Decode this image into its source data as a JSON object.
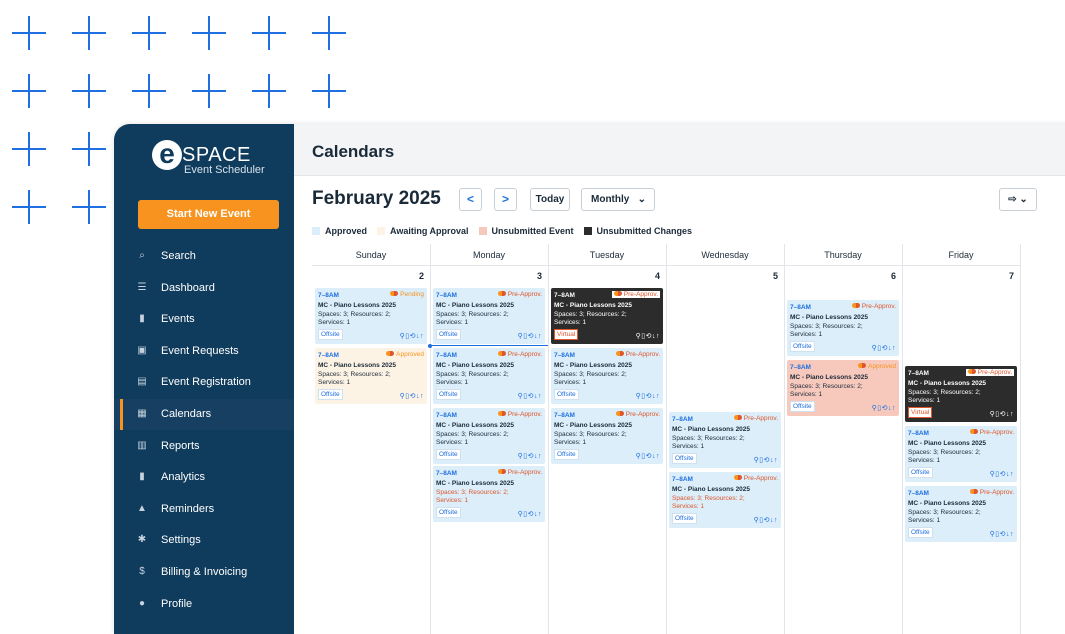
{
  "brand": {
    "logo_letter": "e",
    "logo_word": "SPACE",
    "logo_sub": "Event Scheduler"
  },
  "sidebar": {
    "start_button": "Start New Event",
    "items": [
      {
        "label": "Search",
        "icon": "search-icon",
        "glyph": "⌕"
      },
      {
        "label": "Dashboard",
        "icon": "dashboard-icon",
        "glyph": "☰"
      },
      {
        "label": "Events",
        "icon": "bookmark-icon",
        "glyph": "▮"
      },
      {
        "label": "Event Requests",
        "icon": "calendar-check-icon",
        "glyph": "▣"
      },
      {
        "label": "Event Registration",
        "icon": "registration-icon",
        "glyph": "▤"
      },
      {
        "label": "Calendars",
        "icon": "calendar-icon",
        "glyph": "▦"
      },
      {
        "label": "Reports",
        "icon": "reports-icon",
        "glyph": "▥"
      },
      {
        "label": "Analytics",
        "icon": "analytics-icon",
        "glyph": "▮"
      },
      {
        "label": "Reminders",
        "icon": "bell-icon",
        "glyph": "▲"
      },
      {
        "label": "Settings",
        "icon": "gear-icon",
        "glyph": "✱"
      },
      {
        "label": "Billing & Invoicing",
        "icon": "dollar-icon",
        "glyph": "$"
      },
      {
        "label": "Profile",
        "icon": "user-icon",
        "glyph": "●"
      }
    ]
  },
  "header": {
    "title": "Calendars"
  },
  "toolbar": {
    "month": "February 2025",
    "prev": "<",
    "next": ">",
    "today": "Today",
    "view": "Monthly",
    "chevron": "⌄"
  },
  "legend": [
    {
      "label": "Approved",
      "color": "#dbeefa"
    },
    {
      "label": "Awaiting Approval",
      "color": "#fdf3e4"
    },
    {
      "label": "Unsubmitted Event",
      "color": "#f7c9bd"
    },
    {
      "label": "Unsubmitted Changes",
      "color": "#2c2c2c"
    }
  ],
  "days": [
    "Sunday",
    "Monday",
    "Tuesday",
    "Wednesday",
    "Thursday",
    "Friday"
  ],
  "dates": [
    "2",
    "3",
    "4",
    "5",
    "6",
    "7"
  ],
  "event_template": {
    "time": "7–8AM",
    "name": "MC - Piano Lessons 2025",
    "detail": "Spaces: 3; Resources: 2; Services: 1",
    "actions": "⚲▯⟲↓↑"
  },
  "events": [
    {
      "col": 0,
      "y": 44,
      "kind": "",
      "status": "Pending",
      "status_class": "pending",
      "loc": "Offsite",
      "warn": false
    },
    {
      "col": 0,
      "y": 104,
      "kind": "approved",
      "status": "Approved",
      "status_class": "approved",
      "loc": "Offsite",
      "warn": false
    },
    {
      "col": 1,
      "y": 44,
      "kind": "",
      "status": "Pre-Approv.",
      "status_class": "",
      "loc": "Offsite",
      "warn": false
    },
    {
      "col": 1,
      "y": 104,
      "kind": "",
      "status": "Pre-Approv.",
      "status_class": "",
      "loc": "Offsite",
      "warn": false
    },
    {
      "col": 1,
      "y": 164,
      "kind": "",
      "status": "Pre-Approv.",
      "status_class": "",
      "loc": "Offsite",
      "warn": false
    },
    {
      "col": 1,
      "y": 222,
      "kind": "",
      "status": "Pre-Approv.",
      "status_class": "",
      "loc": "Offsite",
      "warn": true
    },
    {
      "col": 2,
      "y": 44,
      "kind": "dark",
      "status": "Pre-Approv.",
      "status_class": "",
      "loc": "Virtual",
      "warn": false
    },
    {
      "col": 2,
      "y": 104,
      "kind": "",
      "status": "Pre-Approv.",
      "status_class": "",
      "loc": "Offsite",
      "warn": false
    },
    {
      "col": 2,
      "y": 164,
      "kind": "",
      "status": "Pre-Approv.",
      "status_class": "",
      "loc": "Offsite",
      "warn": false
    },
    {
      "col": 3,
      "y": 168,
      "kind": "",
      "status": "Pre-Approv.",
      "status_class": "",
      "loc": "Offsite",
      "warn": false
    },
    {
      "col": 3,
      "y": 228,
      "kind": "",
      "status": "Pre-Approv.",
      "status_class": "",
      "loc": "Offsite",
      "warn": true
    },
    {
      "col": 4,
      "y": 56,
      "kind": "",
      "status": "Pre-Approv.",
      "status_class": "",
      "loc": "Offsite",
      "warn": false
    },
    {
      "col": 4,
      "y": 116,
      "kind": "unsub",
      "status": "Approved",
      "status_class": "approved",
      "loc": "Offsite",
      "warn": false
    },
    {
      "col": 5,
      "y": 122,
      "kind": "dark",
      "status": "Pre-Approv.",
      "status_class": "",
      "loc": "Virtual",
      "warn": false
    },
    {
      "col": 5,
      "y": 182,
      "kind": "",
      "status": "Pre-Approv.",
      "status_class": "",
      "loc": "Offsite",
      "warn": false
    },
    {
      "col": 5,
      "y": 242,
      "kind": "",
      "status": "Pre-Approv.",
      "status_class": "",
      "loc": "Offsite",
      "warn": false
    }
  ]
}
